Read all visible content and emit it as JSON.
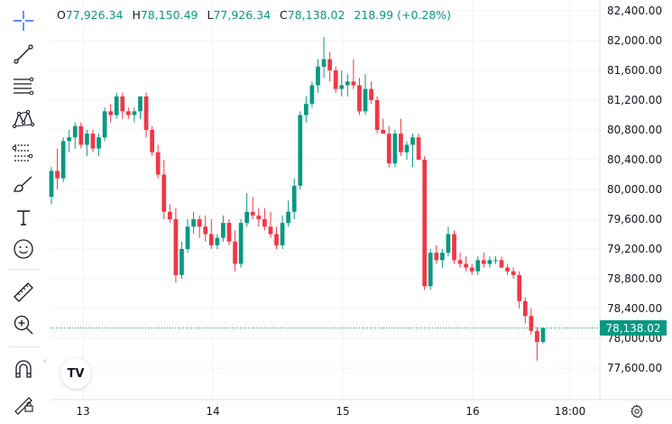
{
  "ohlc": {
    "open_label": "O",
    "open": "77,926.34",
    "high_label": "H",
    "high": "78,150.49",
    "low_label": "L",
    "low": "77,926.34",
    "close_label": "C",
    "close": "78,138.02",
    "change": "218.99 (+0.28%)"
  },
  "current_price": "78,138.02",
  "logo_text": "TV",
  "toolbar": {
    "tools": [
      "crosshair-icon",
      "trend-line-icon",
      "fib-retracement-icon",
      "pattern-icon",
      "prediction-icon",
      "brush-icon",
      "text-icon",
      "emoji-icon",
      "ruler-icon",
      "zoom-in-icon",
      "magnet-icon",
      "lock-drawing-icon"
    ]
  },
  "colors": {
    "up": "#089981",
    "down": "#f23645",
    "grid": "#f0f3fa"
  },
  "chart_data": {
    "type": "candlestick",
    "y_ticks": [
      "82,400.00",
      "82,000.00",
      "81,600.00",
      "81,200.00",
      "80,800.00",
      "80,400.00",
      "80,000.00",
      "79,600.00",
      "79,200.00",
      "78,800.00",
      "78,400.00",
      "78,000.00",
      "77,600.00"
    ],
    "x_ticks": [
      "13",
      "14",
      "15",
      "16",
      "18:00"
    ],
    "ylim": [
      77500,
      82500
    ],
    "candles": [
      [
        79900,
        80300,
        79800,
        80250
      ],
      [
        80250,
        80550,
        80000,
        80150
      ],
      [
        80150,
        80700,
        80100,
        80650
      ],
      [
        80650,
        80800,
        80500,
        80700
      ],
      [
        80700,
        80900,
        80550,
        80850
      ],
      [
        80850,
        80900,
        80550,
        80600
      ],
      [
        80600,
        80800,
        80450,
        80750
      ],
      [
        80750,
        80800,
        80500,
        80550
      ],
      [
        80550,
        80750,
        80450,
        80700
      ],
      [
        80700,
        81100,
        80650,
        81050
      ],
      [
        81050,
        81150,
        80900,
        81000
      ],
      [
        81000,
        81300,
        80950,
        81250
      ],
      [
        81250,
        81300,
        80950,
        81050
      ],
      [
        81050,
        81100,
        80950,
        81000
      ],
      [
        81000,
        81100,
        80900,
        81050
      ],
      [
        81050,
        81250,
        80950,
        81250
      ],
      [
        81250,
        81300,
        80700,
        80800
      ],
      [
        80800,
        80850,
        80450,
        80500
      ],
      [
        80500,
        80600,
        80150,
        80200
      ],
      [
        80200,
        80400,
        79600,
        79700
      ],
      [
        79700,
        79800,
        79550,
        79600
      ],
      [
        79600,
        79750,
        78750,
        78850
      ],
      [
        78850,
        79300,
        78800,
        79200
      ],
      [
        79200,
        79600,
        79150,
        79500
      ],
      [
        79500,
        79700,
        79400,
        79600
      ],
      [
        79600,
        79650,
        79350,
        79500
      ],
      [
        79500,
        79650,
        79300,
        79400
      ],
      [
        79400,
        79600,
        79200,
        79250
      ],
      [
        79250,
        79400,
        79200,
        79350
      ],
      [
        79350,
        79650,
        79300,
        79550
      ],
      [
        79550,
        79600,
        79250,
        79300
      ],
      [
        79300,
        79450,
        78900,
        79000
      ],
      [
        79000,
        79600,
        78950,
        79550
      ],
      [
        79550,
        79950,
        79500,
        79700
      ],
      [
        79700,
        79900,
        79600,
        79650
      ],
      [
        79650,
        79750,
        79500,
        79600
      ],
      [
        79600,
        79750,
        79450,
        79500
      ],
      [
        79500,
        79700,
        79350,
        79400
      ],
      [
        79400,
        79500,
        79200,
        79250
      ],
      [
        79250,
        79650,
        79200,
        79550
      ],
      [
        79550,
        79850,
        79500,
        79700
      ],
      [
        79700,
        80150,
        79600,
        80050
      ],
      [
        80050,
        81050,
        80000,
        81000
      ],
      [
        81000,
        81250,
        80900,
        81150
      ],
      [
        81150,
        81450,
        81100,
        81400
      ],
      [
        81400,
        81750,
        81300,
        81650
      ],
      [
        81650,
        82050,
        81500,
        81750
      ],
      [
        81750,
        81850,
        81450,
        81600
      ],
      [
        81600,
        81650,
        81300,
        81350
      ],
      [
        81350,
        81600,
        81250,
        81400
      ],
      [
        81400,
        81550,
        81250,
        81450
      ],
      [
        81450,
        81750,
        81350,
        81400
      ],
      [
        81400,
        81500,
        81000,
        81050
      ],
      [
        81050,
        81550,
        81000,
        81350
      ],
      [
        81350,
        81450,
        81150,
        81200
      ],
      [
        81200,
        81250,
        80750,
        80800
      ],
      [
        80800,
        80950,
        80750,
        80750
      ],
      [
        80750,
        80850,
        80300,
        80350
      ],
      [
        80350,
        80800,
        80300,
        80750
      ],
      [
        80750,
        80950,
        80450,
        80500
      ],
      [
        80500,
        80650,
        80400,
        80600
      ],
      [
        80600,
        80750,
        80300,
        80700
      ],
      [
        80700,
        80750,
        80400,
        80400
      ],
      [
        80400,
        80450,
        78650,
        78700
      ],
      [
        78700,
        79200,
        78650,
        79150
      ],
      [
        79150,
        79250,
        79000,
        79050
      ],
      [
        79050,
        79200,
        78950,
        79150
      ],
      [
        79150,
        79500,
        79100,
        79400
      ],
      [
        79400,
        79450,
        79000,
        79050
      ],
      [
        79050,
        79150,
        78950,
        79000
      ],
      [
        79000,
        79100,
        78900,
        78950
      ],
      [
        78950,
        79000,
        78850,
        78900
      ],
      [
        78900,
        79100,
        78850,
        79050
      ],
      [
        79050,
        79150,
        78950,
        79000
      ],
      [
        79000,
        79100,
        78950,
        79050
      ],
      [
        79050,
        79100,
        79000,
        79050
      ],
      [
        79050,
        79100,
        78950,
        78950
      ],
      [
        78950,
        79000,
        78850,
        78900
      ],
      [
        78900,
        78950,
        78800,
        78850
      ],
      [
        78850,
        78900,
        78400,
        78500
      ],
      [
        78500,
        78550,
        78200,
        78300
      ],
      [
        78300,
        78400,
        78050,
        78100
      ],
      [
        78100,
        78150,
        77700,
        77950
      ],
      [
        77950,
        78150,
        77930,
        78138
      ]
    ]
  }
}
